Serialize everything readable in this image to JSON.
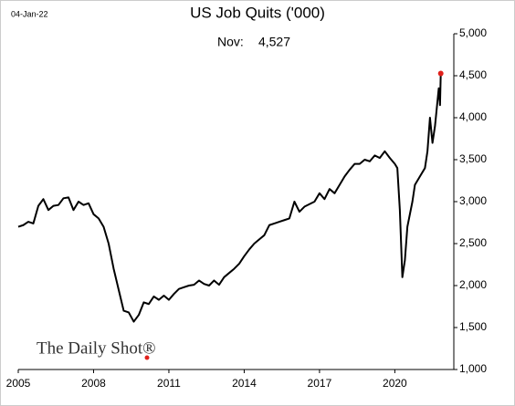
{
  "chart_data": {
    "type": "line",
    "title": "US Job Quits ('000)",
    "date": "04-Jan-22",
    "source": "The Daily Shot®",
    "annotation": {
      "label": "Nov:",
      "value_label": "4,527"
    },
    "x": [
      2005.0,
      2005.2,
      2005.4,
      2005.6,
      2005.8,
      2006.0,
      2006.2,
      2006.4,
      2006.6,
      2006.8,
      2007.0,
      2007.2,
      2007.4,
      2007.6,
      2007.8,
      2008.0,
      2008.2,
      2008.4,
      2008.6,
      2008.8,
      2009.0,
      2009.2,
      2009.4,
      2009.6,
      2009.8,
      2010.0,
      2010.2,
      2010.4,
      2010.6,
      2010.8,
      2011.0,
      2011.2,
      2011.4,
      2011.6,
      2011.8,
      2012.0,
      2012.2,
      2012.4,
      2012.6,
      2012.8,
      2013.0,
      2013.2,
      2013.4,
      2013.6,
      2013.8,
      2014.0,
      2014.2,
      2014.4,
      2014.6,
      2014.8,
      2015.0,
      2015.2,
      2015.4,
      2015.6,
      2015.8,
      2016.0,
      2016.2,
      2016.4,
      2016.6,
      2016.8,
      2017.0,
      2017.2,
      2017.4,
      2017.6,
      2017.8,
      2018.0,
      2018.2,
      2018.4,
      2018.6,
      2018.8,
      2019.0,
      2019.2,
      2019.4,
      2019.6,
      2019.8,
      2020.0,
      2020.1,
      2020.2,
      2020.3,
      2020.4,
      2020.5,
      2020.7,
      2020.8,
      2021.0,
      2021.2,
      2021.3,
      2021.4,
      2021.5,
      2021.6,
      2021.75,
      2021.8,
      2021.83
    ],
    "series": [
      {
        "name": "US Job Quits",
        "color": "#000000",
        "marker_color": "#e0201b",
        "values": [
          2700,
          2720,
          2760,
          2740,
          2950,
          3030,
          2900,
          2950,
          2960,
          3040,
          3050,
          2900,
          3000,
          2960,
          2980,
          2850,
          2800,
          2700,
          2500,
          2200,
          1950,
          1700,
          1680,
          1570,
          1650,
          1800,
          1780,
          1870,
          1830,
          1880,
          1830,
          1900,
          1960,
          1980,
          2000,
          2010,
          2060,
          2020,
          2000,
          2060,
          2010,
          2100,
          2150,
          2200,
          2260,
          2350,
          2430,
          2500,
          2550,
          2600,
          2720,
          2740,
          2760,
          2780,
          2800,
          3000,
          2880,
          2940,
          2970,
          3000,
          3100,
          3030,
          3150,
          3100,
          3200,
          3300,
          3380,
          3450,
          3450,
          3500,
          3480,
          3550,
          3520,
          3600,
          3520,
          3450,
          3400,
          2900,
          2100,
          2300,
          2700,
          3000,
          3200,
          3300,
          3400,
          3600,
          4000,
          3700,
          3900,
          4350,
          4150,
          4527
        ]
      }
    ],
    "xlim": [
      2005,
      2022.35
    ],
    "xticks": [
      2005,
      2008,
      2011,
      2014,
      2017,
      2020
    ],
    "ylim": [
      1000,
      5000
    ],
    "yticks": [
      {
        "value": 1000,
        "label": "1,000"
      },
      {
        "value": 1500,
        "label": "1,500"
      },
      {
        "value": 2000,
        "label": "2,000"
      },
      {
        "value": 2500,
        "label": "2,500"
      },
      {
        "value": 3000,
        "label": "3,000"
      },
      {
        "value": 3500,
        "label": "3,500"
      },
      {
        "value": 4000,
        "label": "4,000"
      },
      {
        "value": 4500,
        "label": "4,500"
      },
      {
        "value": 5000,
        "label": "5,000"
      }
    ],
    "grid": false
  }
}
